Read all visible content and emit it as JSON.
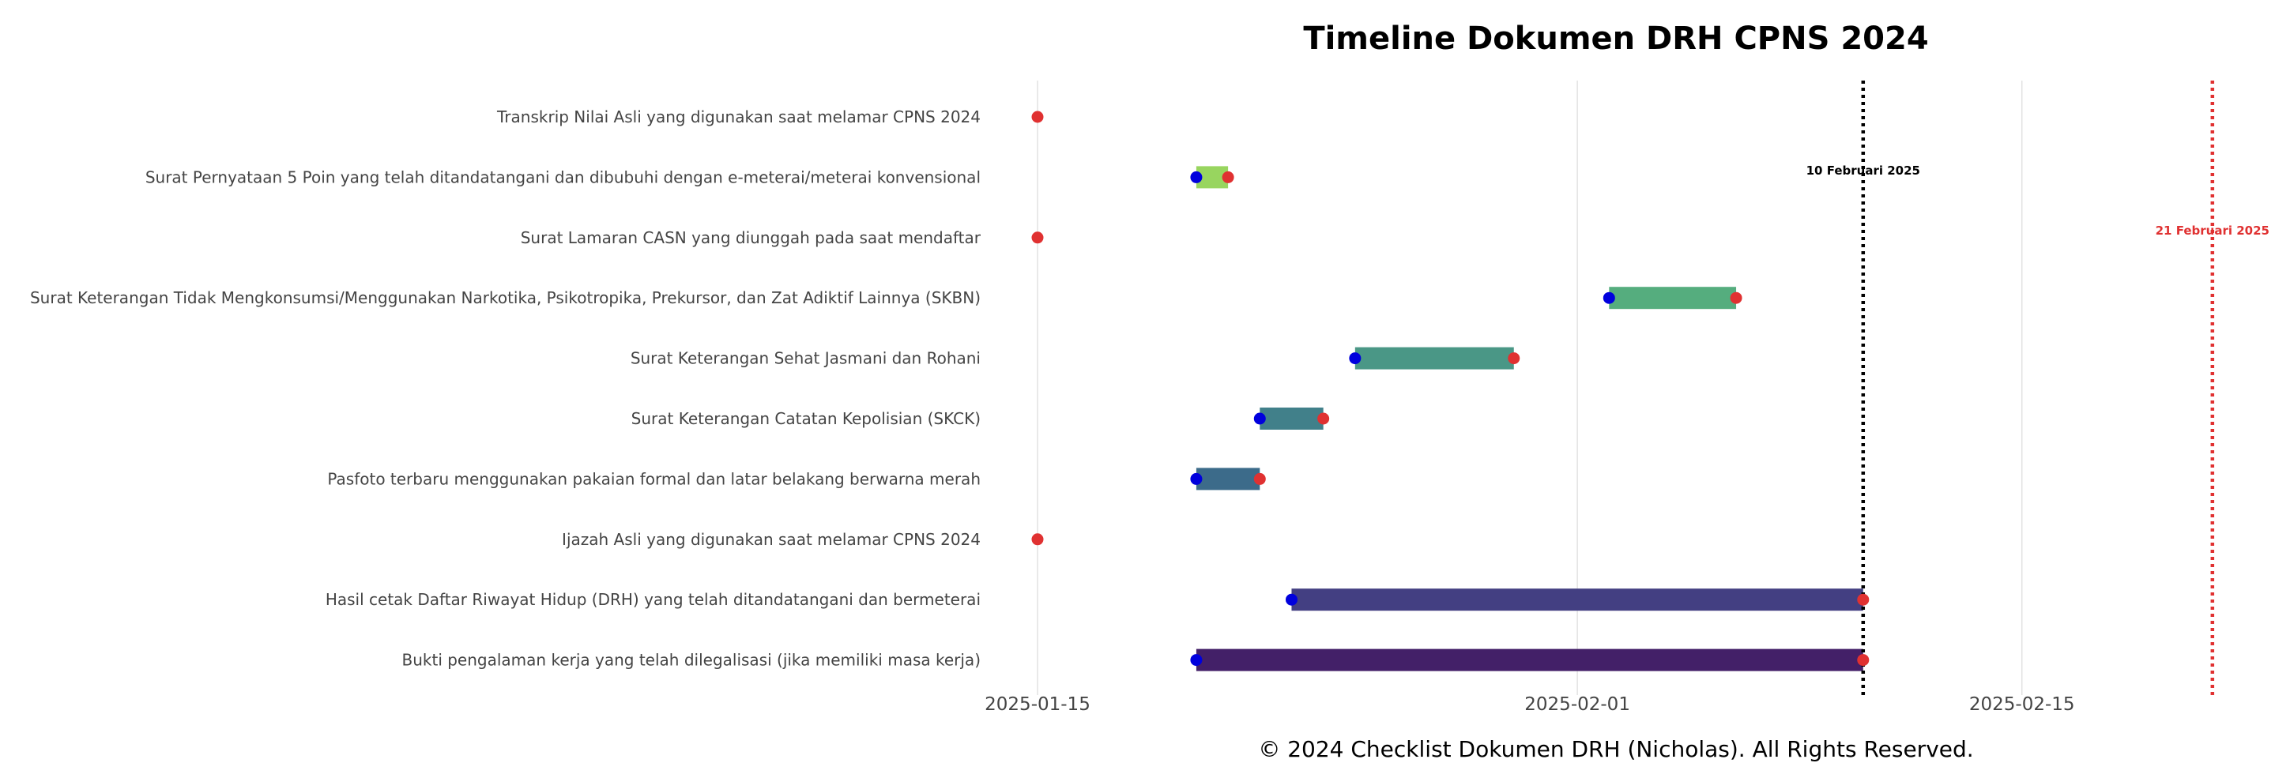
{
  "chart_data": {
    "type": "gantt",
    "title": "Timeline Dokumen DRH CPNS 2024",
    "footer": "© 2024 Checklist Dokumen DRH (Nicholas). All Rights Reserved.",
    "xlim": [
      "2025-01-15",
      "2025-02-22"
    ],
    "x_ticks": [
      "2025-01-15",
      "2025-02-01",
      "2025-02-15"
    ],
    "grid": "vertical-lines",
    "start_marker_color": "#0000dd",
    "end_marker_color": "#e03131",
    "tasks": [
      {
        "label": "Transkrip Nilai Asli yang digunakan saat melamar CPNS 2024",
        "start": "2025-01-15",
        "end": "2025-01-15",
        "color": "#a8db5a"
      },
      {
        "label": "Surat Pernyataan 5 Poin yang telah ditandatangani dan dibubuhi dengan e-meterai/meterai konvensional",
        "start": "2025-01-20",
        "end": "2025-01-21",
        "color": "#98d55f"
      },
      {
        "label": "Surat Lamaran CASN yang diunggah pada saat mendaftar",
        "start": "2025-01-15",
        "end": "2025-01-15",
        "color": "#7ccd68"
      },
      {
        "label": "Surat Keterangan Tidak Mengkonsumsi/Menggunakan Narkotika, Psikotropika, Prekursor, dan Zat Adiktif Lainnya (SKBN)",
        "start": "2025-02-02",
        "end": "2025-02-06",
        "color": "#55ad7e"
      },
      {
        "label": "Surat Keterangan Sehat Jasmani dan Rohani",
        "start": "2025-01-25",
        "end": "2025-01-30",
        "color": "#4a9786"
      },
      {
        "label": "Surat Keterangan Catatan Kepolisian (SKCK)",
        "start": "2025-01-22",
        "end": "2025-01-24",
        "color": "#41808a"
      },
      {
        "label": "Pasfoto terbaru menggunakan pakaian formal dan latar belakang berwarna merah",
        "start": "2025-01-20",
        "end": "2025-01-22",
        "color": "#3c6b8a"
      },
      {
        "label": "Ijazah Asli yang digunakan saat melamar CPNS 2024",
        "start": "2025-01-15",
        "end": "2025-01-15",
        "color": "#3a5a8a"
      },
      {
        "label": "Hasil cetak Daftar Riwayat Hidup (DRH) yang telah ditandatangani dan bermeterai",
        "start": "2025-01-23",
        "end": "2025-02-10",
        "color": "#433f82"
      },
      {
        "label": "Bukti pengalaman kerja yang telah dilegalisasi (jika memiliki masa kerja)",
        "start": "2025-01-20",
        "end": "2025-02-10",
        "color": "#432068"
      }
    ],
    "reference_lines": [
      {
        "date": "2025-02-10",
        "label": "10 Februari 2025",
        "color": "#000000",
        "style": "dotted"
      },
      {
        "date": "2025-02-21",
        "label": "21 Februari 2025",
        "color": "#e03131",
        "style": "dotted"
      }
    ]
  }
}
